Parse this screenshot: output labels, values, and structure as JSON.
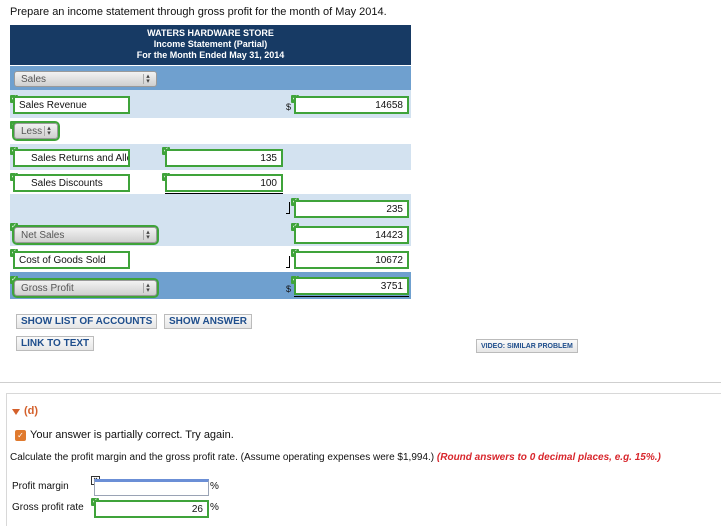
{
  "prompt": "Prepare an income statement through gross profit for the month of May 2014.",
  "statement": {
    "company": "WATERS HARDWARE STORE",
    "title": "Income Statement (Partial)",
    "period": "For the Month Ended May 31, 2014"
  },
  "rows": {
    "sales_select": "Sales",
    "sales_revenue_label": "Sales Revenue",
    "sales_revenue_value": "14658",
    "less_select": "Less",
    "returns_label": "Sales Returns and Allc",
    "returns_value": "135",
    "discounts_label": "Sales Discounts",
    "discounts_value": "100",
    "deduction_total": "235",
    "net_sales_select": "Net Sales",
    "net_sales_value": "14423",
    "cogs_label": "Cost of Goods Sold",
    "cogs_value": "10672",
    "gross_profit_select": "Gross Profit",
    "gross_profit_value": "3751",
    "currency_symbol": "$"
  },
  "buttons": {
    "show_list": "SHOW LIST OF ACCOUNTS",
    "show_answer": "SHOW ANSWER",
    "link_to_text": "LINK TO TEXT",
    "video": "VIDEO: SIMILAR PROBLEM"
  },
  "part_d": {
    "label": "(d)",
    "status": "Your answer is partially correct.  Try again.",
    "instruction": "Calculate the profit margin and the gross profit rate. (Assume operating expenses were $1,994.)",
    "instruction_emphasis": "(Round answers to 0 decimal places, e.g. 15%.)",
    "profit_margin_label": "Profit margin",
    "profit_margin_value": "",
    "gross_profit_rate_label": "Gross profit rate",
    "gross_profit_rate_value": "26",
    "percent_sign": "%"
  },
  "colors": {
    "header_bg": "#173a64",
    "band_dark": "#6fa0cf",
    "band_light": "#d3e2f0",
    "correct_green": "#3fa33a",
    "emphasis_red": "#d8262c",
    "part_label_orange": "#d4602b",
    "button_text": "#1f4e8c"
  },
  "icons": {
    "correct": "check-icon",
    "incorrect": "x-icon",
    "partial": "partial-check-icon",
    "expand": "triangle-down-icon",
    "select_arrows": "up-down-arrows-icon"
  }
}
